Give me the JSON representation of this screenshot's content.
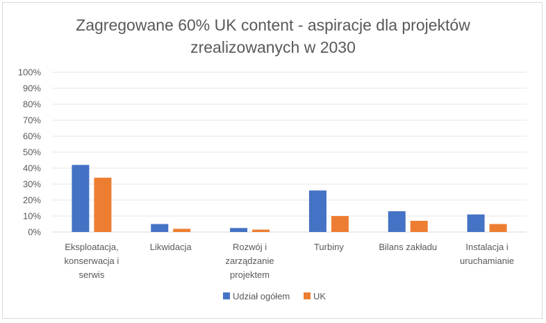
{
  "chart_data": {
    "type": "bar",
    "title_lines": [
      "Zagregowane 60% UK content - aspiracje dla projektów",
      "zrealizowanych w 2030"
    ],
    "categories": [
      [
        "Eksploatacja,",
        "konserwacja i",
        "serwis"
      ],
      [
        "Likwidacja"
      ],
      [
        "Rozwój i",
        "zarządzanie",
        "projektem"
      ],
      [
        "Turbiny"
      ],
      [
        "Bilans zakładu"
      ],
      [
        "Instalacja i",
        "uruchamianie"
      ]
    ],
    "series": [
      {
        "name": "Udział ogółem",
        "color": "#4472c4",
        "values": [
          42,
          5,
          2.5,
          26,
          13,
          11
        ]
      },
      {
        "name": "UK",
        "color": "#ed7d31",
        "values": [
          34,
          2,
          1.5,
          10,
          7,
          5
        ]
      }
    ],
    "ylim": [
      0,
      100
    ],
    "yticks": [
      "0%",
      "10%",
      "20%",
      "30%",
      "40%",
      "50%",
      "60%",
      "70%",
      "80%",
      "90%",
      "100%"
    ],
    "grid": true,
    "legend_position": "bottom"
  }
}
